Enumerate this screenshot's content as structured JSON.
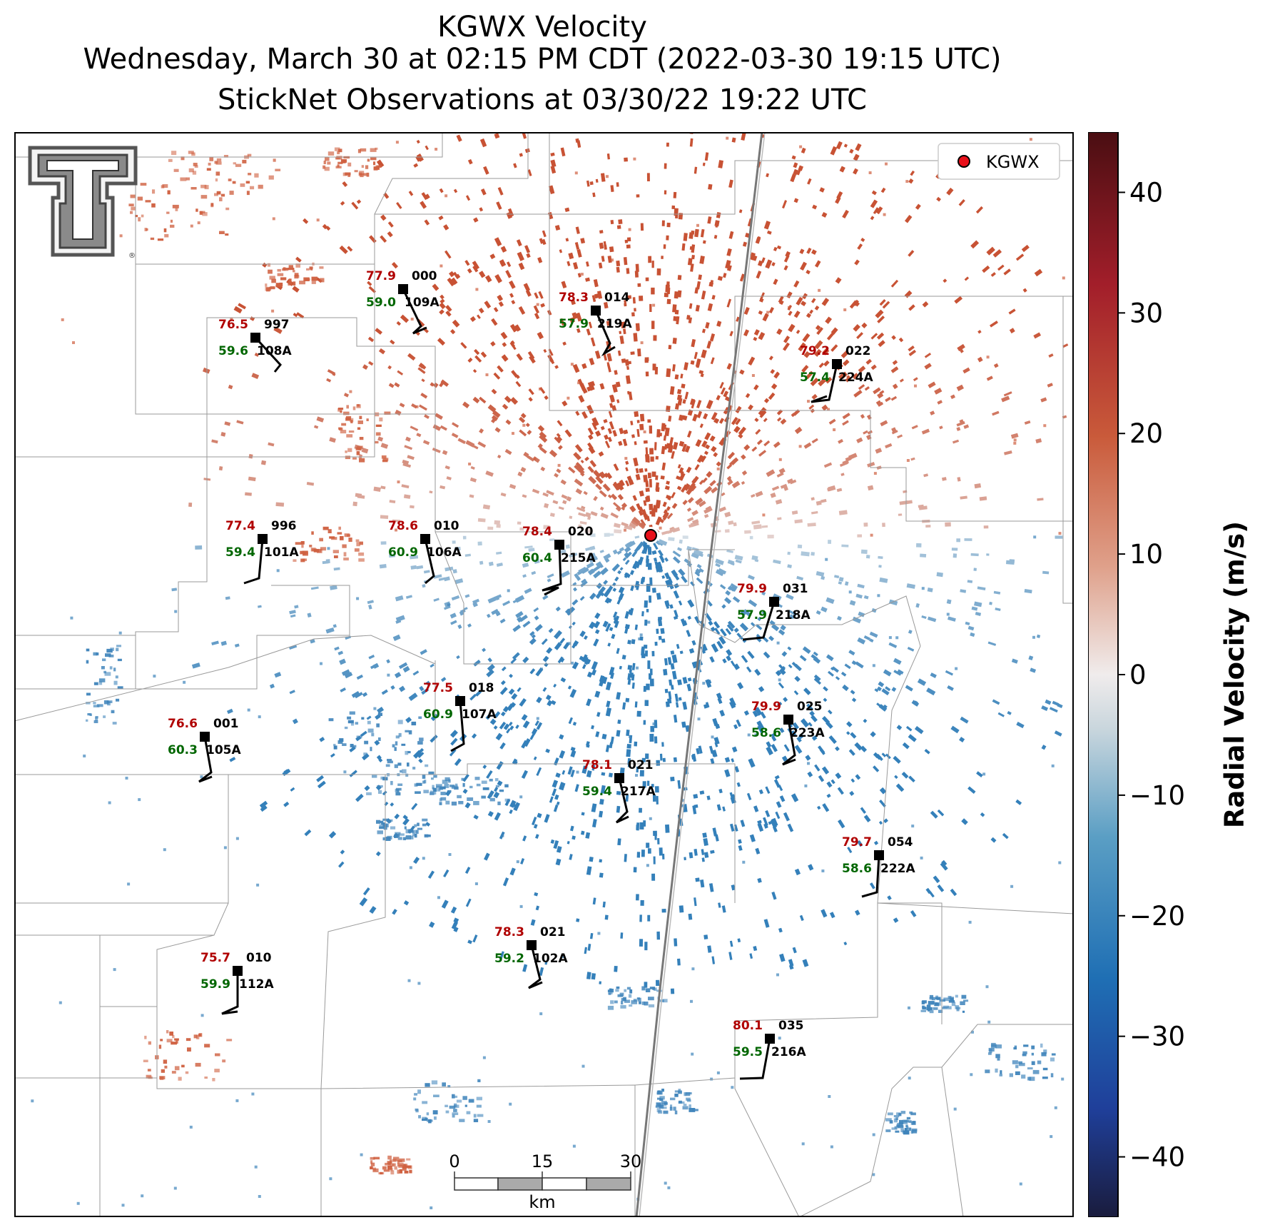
{
  "title": {
    "line1": "KGWX Velocity",
    "line2": "Wednesday, March 30 at 02:15 PM CDT (2022-03-30 19:15 UTC)",
    "line3": "StickNet Observations at 03/30/22 19:22 UTC"
  },
  "legend": {
    "label": "KGWX",
    "marker_color": "#e8101a"
  },
  "scale_bar": {
    "ticks": [
      "0",
      "15",
      "30"
    ],
    "unit": "km"
  },
  "colorbar": {
    "label": "Radial Velocity (m/s)",
    "ticks": [
      "40",
      "30",
      "20",
      "10",
      "0",
      "−10",
      "−20",
      "−30",
      "−40"
    ],
    "tick_values": [
      40,
      30,
      20,
      10,
      0,
      -10,
      -20,
      -30,
      -40
    ],
    "range": [
      -45,
      45
    ],
    "colors": [
      "#1a1c3d",
      "#1f3f9a",
      "#1f6fb4",
      "#5a9ec4",
      "#c9d6dd",
      "#f0ecec",
      "#dfa08a",
      "#c95a3a",
      "#a21e2a",
      "#4a0e12"
    ]
  },
  "colors": {
    "inbound": "#3f84bb",
    "outbound": "#cf6040",
    "temperature": "#b00000",
    "dewpoint": "#006600"
  },
  "stations": [
    {
      "id": "109A",
      "temp": "77.9",
      "dew": "59.0",
      "pressure": "000"
    },
    {
      "id": "219A",
      "temp": "78.3",
      "dew": "57.9",
      "pressure": "014"
    },
    {
      "id": "108A",
      "temp": "76.5",
      "dew": "59.6",
      "pressure": "997"
    },
    {
      "id": "224A",
      "temp": "79.2",
      "dew": "57.4",
      "pressure": "022"
    },
    {
      "id": "101A",
      "temp": "77.4",
      "dew": "59.4",
      "pressure": "996"
    },
    {
      "id": "106A",
      "temp": "78.6",
      "dew": "60.9",
      "pressure": "010"
    },
    {
      "id": "215A",
      "temp": "78.4",
      "dew": "60.4",
      "pressure": "020"
    },
    {
      "id": "218A",
      "temp": "79.9",
      "dew": "57.9",
      "pressure": "031"
    },
    {
      "id": "107A",
      "temp": "77.5",
      "dew": "60.9",
      "pressure": "018"
    },
    {
      "id": "223A",
      "temp": "79.9",
      "dew": "58.6",
      "pressure": "025"
    },
    {
      "id": "105A",
      "temp": "76.6",
      "dew": "60.3",
      "pressure": "001"
    },
    {
      "id": "217A",
      "temp": "78.1",
      "dew": "59.4",
      "pressure": "021"
    },
    {
      "id": "222A",
      "temp": "79.7",
      "dew": "58.6",
      "pressure": "054"
    },
    {
      "id": "102A",
      "temp": "78.3",
      "dew": "59.2",
      "pressure": "021"
    },
    {
      "id": "112A",
      "temp": "75.7",
      "dew": "59.9",
      "pressure": "010"
    },
    {
      "id": "216A",
      "temp": "80.1",
      "dew": "59.5",
      "pressure": "035"
    }
  ]
}
